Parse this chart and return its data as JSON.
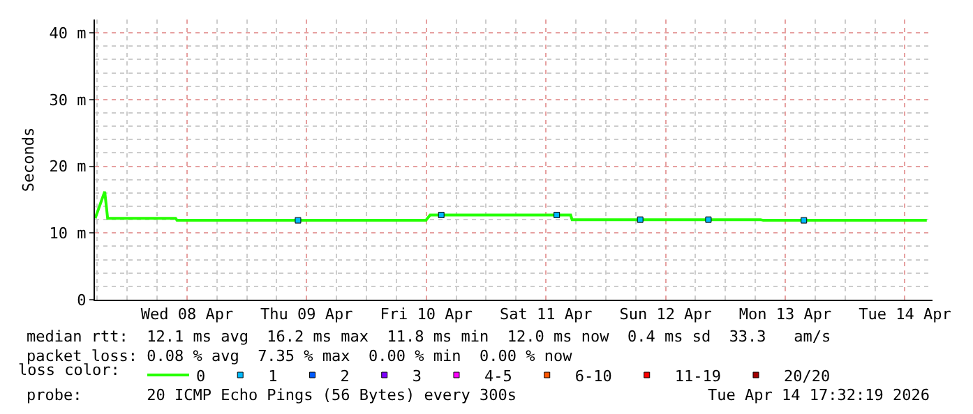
{
  "chart_data": {
    "type": "line",
    "ylabel": "Seconds",
    "legend_title": "loss color:",
    "x": [
      "2026-04-07T17:35",
      "2026-04-07T19:30",
      "2026-04-07T20:05",
      "2026-04-08T09:43",
      "2026-04-08T10:00",
      "2026-04-10T11:56",
      "2026-04-10T12:46",
      "2026-04-11T16:57",
      "2026-04-11T17:14",
      "2026-04-13T07:02",
      "2026-04-13T07:35",
      "2026-04-14T16:23"
    ],
    "series": [
      {
        "name": "0",
        "color": "#26ff00",
        "values": [
          12.2,
          16.2,
          12.2,
          12.2,
          11.9,
          11.9,
          12.7,
          12.7,
          12.0,
          12.0,
          11.9,
          11.9
        ]
      },
      {
        "name": "1",
        "color": "#00b8ff",
        "type": "scatter",
        "marker": "square",
        "x": [
          "2026-04-09T10:16",
          "2026-04-10T15:00",
          "2026-04-11T14:10",
          "2026-04-12T06:54",
          "2026-04-12T20:35",
          "2026-04-13T15:44"
        ],
        "values": [
          11.9,
          12.7,
          12.7,
          12.0,
          12.0,
          11.9
        ]
      },
      {
        "name": "2",
        "color": "#0059ff",
        "type": "scatter",
        "marker": "square",
        "values": [
          null,
          null,
          null,
          null,
          null,
          null,
          null,
          null,
          null,
          null,
          null,
          null
        ]
      },
      {
        "name": "3",
        "color": "#7e00ff",
        "type": "scatter",
        "marker": "square",
        "values": [
          null,
          null,
          null,
          null,
          null,
          null,
          null,
          null,
          null,
          null,
          null,
          null
        ]
      },
      {
        "name": "4-5",
        "color": "#ff00ff",
        "type": "scatter",
        "marker": "square",
        "values": [
          null,
          null,
          null,
          null,
          null,
          null,
          null,
          null,
          null,
          null,
          null,
          null
        ]
      },
      {
        "name": "6-10",
        "color": "#ff5500",
        "type": "scatter",
        "marker": "square",
        "values": [
          null,
          null,
          null,
          null,
          null,
          null,
          null,
          null,
          null,
          null,
          null,
          null
        ]
      },
      {
        "name": "11-19",
        "color": "#ff0000",
        "type": "scatter",
        "marker": "square",
        "values": [
          null,
          null,
          null,
          null,
          null,
          null,
          null,
          null,
          null,
          null,
          null,
          null
        ]
      },
      {
        "name": "20/20",
        "color": "#a10000",
        "type": "scatter",
        "marker": "square",
        "values": [
          null,
          null,
          null,
          null,
          null,
          null,
          null,
          null,
          null,
          null,
          null,
          null
        ]
      }
    ],
    "xlim": [
      "2026-04-07T17:32",
      "2026-04-14T17:32"
    ],
    "xticks": [
      {
        "value": "2026-04-08T12:00",
        "label": "Wed 08 Apr"
      },
      {
        "value": "2026-04-09T12:00",
        "label": "Thu 09 Apr"
      },
      {
        "value": "2026-04-10T12:00",
        "label": "Fri 10 Apr"
      },
      {
        "value": "2026-04-11T12:00",
        "label": "Sat 11 Apr"
      },
      {
        "value": "2026-04-12T12:00",
        "label": "Sun 12 Apr"
      },
      {
        "value": "2026-04-13T12:00",
        "label": "Mon 13 Apr"
      },
      {
        "value": "2026-04-14T12:00",
        "label": "Tue 14 Apr"
      }
    ],
    "ylim": [
      0,
      42
    ],
    "yticks": [
      0,
      {
        "value": 10,
        "label": "10 m"
      },
      {
        "value": 20,
        "label": "20 m"
      },
      {
        "value": 30,
        "label": "30 m"
      },
      {
        "value": 40,
        "label": "40 m"
      }
    ],
    "grid": true,
    "legend": "bottom",
    "marker": "none",
    "line_style": "solid",
    "annotations": [
      "median rtt:  12.1 ms avg  16.2 ms max  11.8 ms min  12.0 ms now  0.4 ms sd  33.3   am/s",
      "packet loss: 0.08 % avg  7.35 % max  0.00 % min  0.00 % now",
      "probe:       20 ICMP Echo Pings (56 Bytes) every 300s",
      "Tue Apr 14 17:32:19 2026"
    ]
  }
}
